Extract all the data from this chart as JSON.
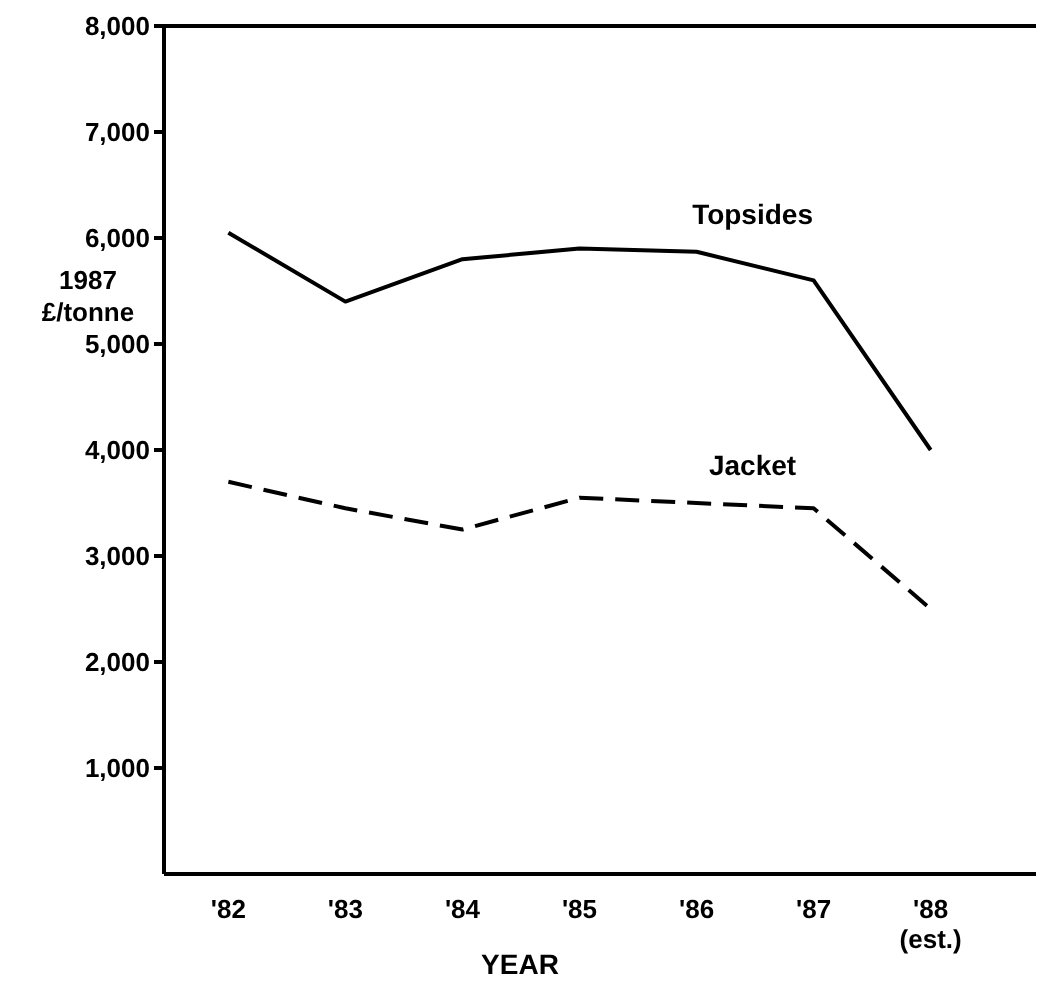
{
  "chart_data": {
    "type": "line",
    "xlabel": "YEAR",
    "ylabel": "1987 £/tonne",
    "categories": [
      "'82",
      "'83",
      "'84",
      "'85",
      "'86",
      "'87",
      "'88 (est.)"
    ],
    "series": [
      {
        "name": "Topsides",
        "color": "#000000",
        "line_style": "solid",
        "values": [
          6050,
          5400,
          5800,
          5900,
          5870,
          5600,
          4000
        ]
      },
      {
        "name": "Jacket",
        "color": "#000000",
        "line_style": "dashed",
        "values": [
          3700,
          3450,
          3250,
          3550,
          3500,
          3450,
          2500
        ]
      }
    ],
    "ylim": [
      0,
      8000
    ],
    "yticks": [
      {
        "value": 1000,
        "label": "1,000"
      },
      {
        "value": 2000,
        "label": "2,000"
      },
      {
        "value": 3000,
        "label": "3,000"
      },
      {
        "value": 4000,
        "label": "4,000"
      },
      {
        "value": 5000,
        "label": "5,000"
      },
      {
        "value": 6000,
        "label": "6,000"
      },
      {
        "value": 7000,
        "label": "7,000"
      },
      {
        "value": 8000,
        "label": "8,000"
      }
    ],
    "grid": false,
    "legend": false,
    "marker": "none"
  }
}
